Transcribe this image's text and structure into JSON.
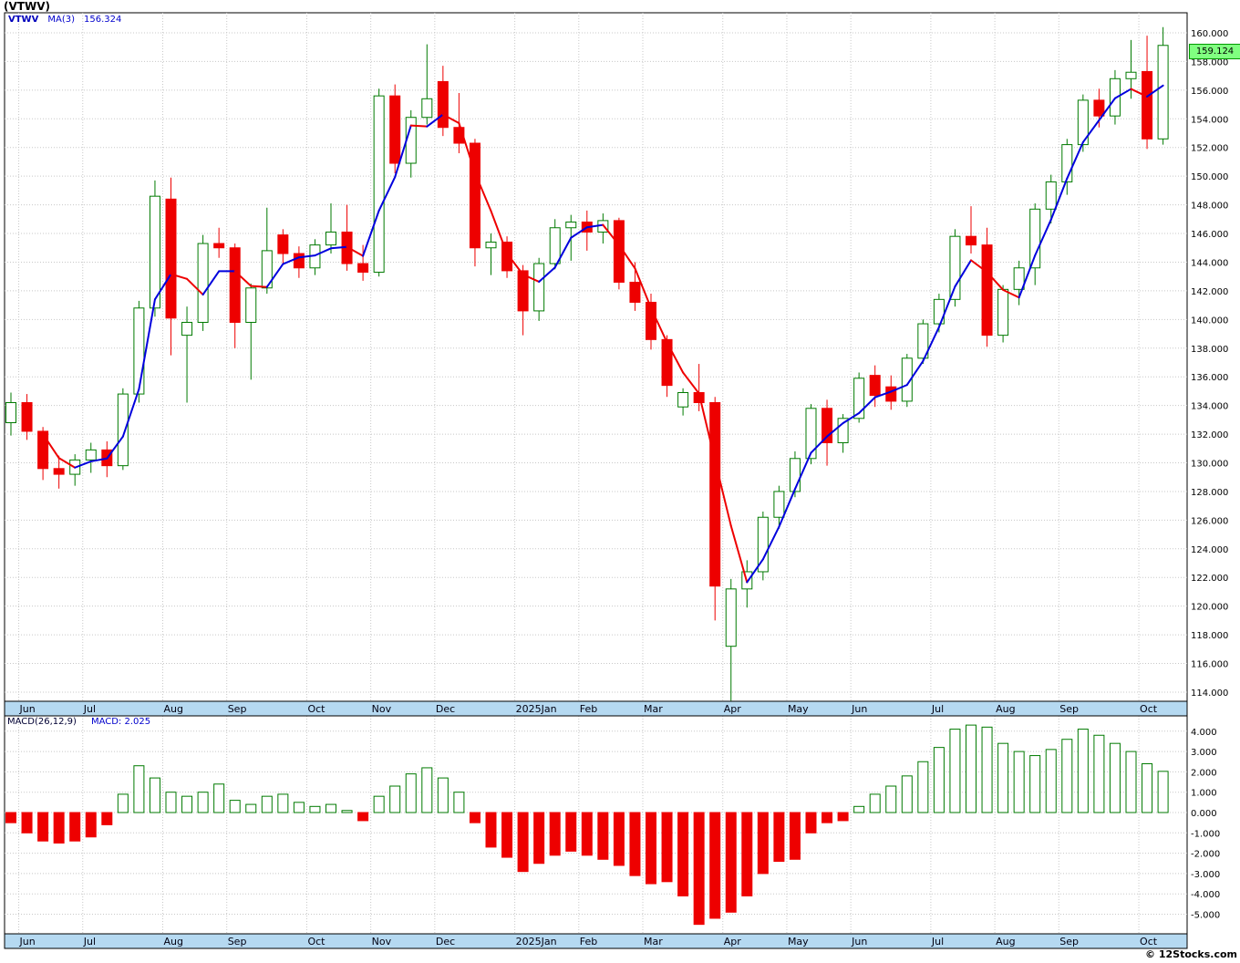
{
  "page_title": "(VTWV)",
  "watermark": "© 12Stocks.com",
  "price_pane": {
    "legend": {
      "symbol": "VTWV",
      "ma_label": "MA(3)",
      "ma_value": "156.324"
    },
    "last_price_tag": "159.124",
    "y_axis_ticks": [
      "160.000",
      "158.000",
      "156.000",
      "154.000",
      "152.000",
      "150.000",
      "148.000",
      "146.000",
      "144.000",
      "142.000",
      "140.000",
      "138.000",
      "136.000",
      "134.000",
      "132.000",
      "130.000",
      "128.000",
      "126.000",
      "124.000",
      "122.000",
      "120.000",
      "118.000",
      "116.000",
      "114.000"
    ]
  },
  "macd_pane": {
    "legend": {
      "label": "MACD(26,12,9)",
      "value": "MACD: 2.025"
    },
    "y_axis_ticks": [
      "4.000",
      "3.000",
      "2.000",
      "1.000",
      "0.000",
      "-1.000",
      "-2.000",
      "-3.000",
      "-4.000",
      "-5.000"
    ]
  },
  "colors": {
    "up_outline": "#007a00",
    "down": "#ee0000",
    "ma_rising": "#0000dd",
    "ma_falling": "#ee0000",
    "grid": "#c8c8c8",
    "month_strip_bg": "#b5d9f1",
    "price_tag_bg": "#80ff80",
    "legend_blue": "#0000cc"
  },
  "chart_data": [
    {
      "type": "candlestick",
      "title": "VTWV weekly price with MA(3)",
      "ylim": [
        114,
        160
      ],
      "y_tick_step": 2,
      "ma_period": 3,
      "ma_last_value": 156.324,
      "last_close": 159.124,
      "x_month_labels": [
        {
          "i": 1,
          "label": "Jun"
        },
        {
          "i": 5,
          "label": "Jul"
        },
        {
          "i": 10,
          "label": "Aug"
        },
        {
          "i": 14,
          "label": "Sep"
        },
        {
          "i": 19,
          "label": "Oct"
        },
        {
          "i": 23,
          "label": "Nov"
        },
        {
          "i": 27,
          "label": "Dec"
        },
        {
          "i": 32,
          "label": "2025Jan"
        },
        {
          "i": 36,
          "label": "Feb"
        },
        {
          "i": 40,
          "label": "Mar"
        },
        {
          "i": 45,
          "label": "Apr"
        },
        {
          "i": 49,
          "label": "May"
        },
        {
          "i": 53,
          "label": "Jun"
        },
        {
          "i": 58,
          "label": "Jul"
        },
        {
          "i": 62,
          "label": "Aug"
        },
        {
          "i": 66,
          "label": "Sep"
        },
        {
          "i": 71,
          "label": "Oct"
        }
      ],
      "ohlc": [
        [
          132.8,
          134.9,
          131.9,
          134.2
        ],
        [
          134.2,
          134.8,
          131.6,
          132.2
        ],
        [
          132.2,
          132.5,
          128.8,
          129.6
        ],
        [
          129.6,
          130.5,
          128.2,
          129.2
        ],
        [
          129.2,
          130.6,
          128.4,
          130.2
        ],
        [
          130.2,
          131.4,
          129.3,
          130.9
        ],
        [
          130.9,
          131.5,
          129.0,
          129.8
        ],
        [
          129.8,
          135.2,
          129.5,
          134.8
        ],
        [
          134.8,
          141.3,
          134.2,
          140.8
        ],
        [
          140.8,
          149.7,
          140.2,
          148.6
        ],
        [
          148.4,
          149.9,
          137.5,
          140.1
        ],
        [
          138.9,
          140.9,
          134.2,
          139.8
        ],
        [
          139.8,
          145.9,
          139.2,
          145.3
        ],
        [
          145.3,
          146.4,
          144.3,
          145.0
        ],
        [
          145.0,
          145.3,
          138.0,
          139.8
        ],
        [
          139.8,
          142.5,
          135.8,
          142.2
        ],
        [
          142.2,
          147.8,
          141.8,
          144.8
        ],
        [
          145.9,
          146.3,
          143.9,
          144.6
        ],
        [
          144.6,
          145.1,
          142.9,
          143.6
        ],
        [
          143.6,
          145.6,
          143.1,
          145.2
        ],
        [
          145.2,
          148.1,
          144.6,
          146.1
        ],
        [
          146.1,
          148.0,
          143.4,
          143.9
        ],
        [
          143.9,
          145.2,
          142.7,
          143.3
        ],
        [
          143.3,
          156.1,
          143.0,
          155.6
        ],
        [
          155.6,
          156.4,
          150.2,
          150.9
        ],
        [
          150.9,
          154.6,
          149.9,
          154.1
        ],
        [
          154.1,
          159.2,
          153.6,
          155.4
        ],
        [
          156.6,
          157.7,
          152.8,
          153.4
        ],
        [
          153.4,
          155.8,
          151.6,
          152.3
        ],
        [
          152.3,
          152.6,
          143.7,
          145.0
        ],
        [
          145.0,
          146.0,
          143.1,
          145.4
        ],
        [
          145.4,
          145.8,
          142.9,
          143.4
        ],
        [
          143.4,
          143.8,
          138.9,
          140.6
        ],
        [
          140.6,
          144.3,
          139.9,
          143.9
        ],
        [
          143.9,
          147.0,
          143.5,
          146.4
        ],
        [
          146.4,
          147.3,
          144.1,
          146.8
        ],
        [
          146.8,
          147.6,
          144.8,
          146.1
        ],
        [
          146.1,
          147.4,
          145.3,
          146.9
        ],
        [
          146.9,
          147.1,
          142.1,
          142.6
        ],
        [
          142.6,
          144.0,
          140.6,
          141.2
        ],
        [
          141.2,
          141.8,
          137.9,
          138.6
        ],
        [
          138.6,
          138.9,
          134.6,
          135.4
        ],
        [
          133.9,
          135.2,
          133.3,
          134.9
        ],
        [
          134.9,
          136.9,
          133.6,
          134.2
        ],
        [
          134.2,
          134.6,
          119.0,
          121.4
        ],
        [
          117.2,
          121.9,
          113.4,
          121.2
        ],
        [
          121.2,
          123.2,
          119.9,
          122.4
        ],
        [
          122.4,
          126.6,
          121.8,
          126.2
        ],
        [
          126.2,
          128.4,
          125.4,
          128.0
        ],
        [
          128.0,
          130.8,
          127.6,
          130.3
        ],
        [
          130.3,
          134.1,
          129.9,
          133.8
        ],
        [
          133.8,
          134.4,
          129.8,
          131.4
        ],
        [
          131.4,
          133.4,
          130.7,
          133.1
        ],
        [
          133.1,
          136.3,
          132.8,
          135.9
        ],
        [
          136.1,
          136.8,
          133.9,
          134.7
        ],
        [
          135.3,
          136.1,
          133.7,
          134.3
        ],
        [
          134.3,
          137.6,
          133.9,
          137.3
        ],
        [
          137.3,
          140.0,
          136.9,
          139.7
        ],
        [
          139.7,
          141.8,
          139.1,
          141.4
        ],
        [
          141.4,
          146.3,
          140.9,
          145.8
        ],
        [
          145.8,
          147.9,
          144.6,
          145.2
        ],
        [
          145.2,
          146.4,
          138.1,
          138.9
        ],
        [
          138.9,
          142.4,
          138.4,
          142.1
        ],
        [
          142.1,
          144.1,
          141.0,
          143.6
        ],
        [
          143.6,
          148.1,
          142.4,
          147.7
        ],
        [
          147.7,
          150.1,
          146.7,
          149.6
        ],
        [
          149.6,
          152.6,
          148.7,
          152.2
        ],
        [
          152.2,
          155.7,
          151.7,
          155.3
        ],
        [
          155.3,
          156.1,
          153.4,
          154.2
        ],
        [
          154.2,
          157.4,
          153.6,
          156.8
        ],
        [
          156.8,
          159.5,
          155.4,
          157.25
        ],
        [
          157.3,
          159.8,
          151.9,
          152.6
        ],
        [
          152.6,
          160.4,
          152.2,
          159.124
        ]
      ]
    },
    {
      "type": "bar",
      "title": "MACD(26,12,9) histogram",
      "ylim": [
        -5,
        4
      ],
      "last_value": 2.025,
      "values": [
        -0.5,
        -1.0,
        -1.4,
        -1.5,
        -1.4,
        -1.2,
        -0.6,
        0.9,
        2.3,
        1.7,
        1.0,
        0.8,
        1.0,
        1.4,
        0.6,
        0.4,
        0.8,
        0.9,
        0.5,
        0.3,
        0.4,
        0.1,
        -0.4,
        0.8,
        1.3,
        1.9,
        2.2,
        1.7,
        1.0,
        -0.5,
        -1.7,
        -2.2,
        -2.9,
        -2.5,
        -2.1,
        -1.9,
        -2.1,
        -2.3,
        -2.6,
        -3.1,
        -3.5,
        -3.4,
        -4.1,
        -5.5,
        -5.2,
        -4.9,
        -4.1,
        -3.0,
        -2.4,
        -2.3,
        -1.0,
        -0.5,
        -0.4,
        0.3,
        0.9,
        1.3,
        1.8,
        2.5,
        3.2,
        4.1,
        4.3,
        4.2,
        3.4,
        3.0,
        2.8,
        3.1,
        3.6,
        4.1,
        3.8,
        3.4,
        3.0,
        2.4,
        2.025
      ]
    }
  ]
}
